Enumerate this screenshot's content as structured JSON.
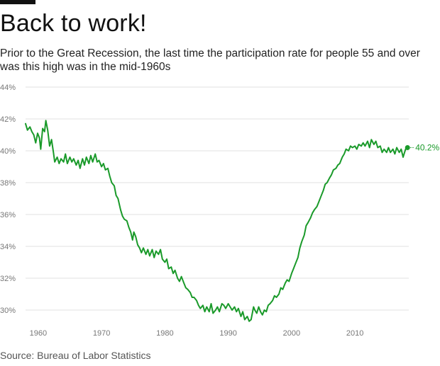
{
  "header": {
    "title": "Back to work!",
    "subtitle": "Prior to the Great Recession, the last time the participation rate for people 55 and over was this high was in the mid-1960s"
  },
  "footer": {
    "source": "Source: Bureau of Labor Statistics"
  },
  "colors": {
    "line": "#1a9a2a",
    "grid": "#e2e2e2",
    "axis_text": "#777777"
  },
  "chart_data": {
    "type": "line",
    "title": "Back to work!",
    "xlabel": "",
    "ylabel": "",
    "xlim": [
      1958,
      2018.5
    ],
    "ylim": [
      29,
      44.5
    ],
    "x_ticks": [
      1960,
      1970,
      1980,
      1990,
      2000,
      2010
    ],
    "x_tick_labels": [
      "1960",
      "1970",
      "1980",
      "1990",
      "2000",
      "2010"
    ],
    "y_ticks": [
      30,
      32,
      34,
      36,
      38,
      40,
      42,
      44
    ],
    "y_tick_labels": [
      "30%",
      "32%",
      "34%",
      "36%",
      "38%",
      "40%",
      "42%",
      "44%"
    ],
    "grid": "horizontal",
    "series": [
      {
        "name": "",
        "color": "#1a9a2a",
        "end_label": "40.2%",
        "points": [
          [
            1958.0,
            41.7
          ],
          [
            1958.3,
            41.3
          ],
          [
            1958.7,
            41.5
          ],
          [
            1959.0,
            41.2
          ],
          [
            1959.3,
            41.0
          ],
          [
            1959.6,
            40.5
          ],
          [
            1959.9,
            41.1
          ],
          [
            1960.2,
            40.8
          ],
          [
            1960.4,
            40.1
          ],
          [
            1960.7,
            41.4
          ],
          [
            1961.0,
            41.2
          ],
          [
            1961.2,
            41.9
          ],
          [
            1961.5,
            41.3
          ],
          [
            1961.8,
            40.3
          ],
          [
            1962.1,
            40.7
          ],
          [
            1962.4,
            39.9
          ],
          [
            1962.6,
            39.3
          ],
          [
            1963.0,
            39.6
          ],
          [
            1963.3,
            39.2
          ],
          [
            1963.6,
            39.5
          ],
          [
            1964.0,
            39.3
          ],
          [
            1964.3,
            39.8
          ],
          [
            1964.6,
            39.2
          ],
          [
            1965.0,
            39.6
          ],
          [
            1965.3,
            39.3
          ],
          [
            1965.6,
            39.5
          ],
          [
            1966.0,
            39.1
          ],
          [
            1966.3,
            39.4
          ],
          [
            1966.6,
            38.9
          ],
          [
            1967.0,
            39.5
          ],
          [
            1967.3,
            39.1
          ],
          [
            1967.6,
            39.6
          ],
          [
            1968.0,
            39.2
          ],
          [
            1968.3,
            39.7
          ],
          [
            1968.6,
            39.3
          ],
          [
            1969.0,
            39.8
          ],
          [
            1969.3,
            39.3
          ],
          [
            1969.6,
            39.4
          ],
          [
            1970.0,
            39.0
          ],
          [
            1970.3,
            39.2
          ],
          [
            1970.6,
            38.8
          ],
          [
            1971.0,
            38.9
          ],
          [
            1971.3,
            38.4
          ],
          [
            1971.6,
            38.0
          ],
          [
            1972.0,
            37.8
          ],
          [
            1972.3,
            37.2
          ],
          [
            1972.6,
            37.0
          ],
          [
            1973.0,
            36.3
          ],
          [
            1973.3,
            35.9
          ],
          [
            1973.6,
            35.7
          ],
          [
            1974.0,
            35.6
          ],
          [
            1974.3,
            35.2
          ],
          [
            1974.6,
            34.9
          ],
          [
            1974.9,
            34.4
          ],
          [
            1975.1,
            34.9
          ],
          [
            1975.4,
            34.6
          ],
          [
            1975.7,
            34.1
          ],
          [
            1976.0,
            33.9
          ],
          [
            1976.3,
            33.6
          ],
          [
            1976.6,
            33.9
          ],
          [
            1977.0,
            33.5
          ],
          [
            1977.3,
            33.8
          ],
          [
            1977.6,
            33.4
          ],
          [
            1978.0,
            33.8
          ],
          [
            1978.3,
            33.3
          ],
          [
            1978.6,
            33.7
          ],
          [
            1979.0,
            33.5
          ],
          [
            1979.3,
            33.8
          ],
          [
            1979.6,
            33.2
          ],
          [
            1980.0,
            33.0
          ],
          [
            1980.3,
            33.2
          ],
          [
            1980.6,
            32.6
          ],
          [
            1981.0,
            32.7
          ],
          [
            1981.3,
            32.3
          ],
          [
            1981.6,
            32.5
          ],
          [
            1982.0,
            32.0
          ],
          [
            1982.3,
            31.8
          ],
          [
            1982.6,
            32.1
          ],
          [
            1983.0,
            31.7
          ],
          [
            1983.3,
            31.4
          ],
          [
            1983.6,
            31.3
          ],
          [
            1984.0,
            31.1
          ],
          [
            1984.3,
            30.8
          ],
          [
            1984.6,
            30.8
          ],
          [
            1985.0,
            30.6
          ],
          [
            1985.3,
            30.3
          ],
          [
            1985.6,
            30.1
          ],
          [
            1986.0,
            30.3
          ],
          [
            1986.3,
            29.9
          ],
          [
            1986.6,
            30.2
          ],
          [
            1987.0,
            29.9
          ],
          [
            1987.3,
            30.4
          ],
          [
            1987.6,
            29.8
          ],
          [
            1988.0,
            30.0
          ],
          [
            1988.3,
            30.2
          ],
          [
            1988.6,
            29.9
          ],
          [
            1989.0,
            30.4
          ],
          [
            1989.3,
            30.3
          ],
          [
            1989.6,
            30.1
          ],
          [
            1990.0,
            30.4
          ],
          [
            1990.3,
            30.2
          ],
          [
            1990.6,
            30.0
          ],
          [
            1991.0,
            30.2
          ],
          [
            1991.3,
            29.9
          ],
          [
            1991.6,
            30.1
          ],
          [
            1992.0,
            29.6
          ],
          [
            1992.3,
            29.9
          ],
          [
            1992.6,
            29.4
          ],
          [
            1993.0,
            29.6
          ],
          [
            1993.3,
            29.3
          ],
          [
            1993.6,
            29.4
          ],
          [
            1994.0,
            30.2
          ],
          [
            1994.2,
            30.0
          ],
          [
            1994.5,
            29.8
          ],
          [
            1994.8,
            30.2
          ],
          [
            1995.1,
            29.9
          ],
          [
            1995.4,
            29.7
          ],
          [
            1995.7,
            30.0
          ],
          [
            1996.0,
            29.9
          ],
          [
            1996.3,
            30.3
          ],
          [
            1996.6,
            30.4
          ],
          [
            1997.0,
            30.6
          ],
          [
            1997.3,
            30.9
          ],
          [
            1997.6,
            30.8
          ],
          [
            1998.0,
            31.0
          ],
          [
            1998.3,
            31.4
          ],
          [
            1998.6,
            31.3
          ],
          [
            1999.0,
            31.7
          ],
          [
            1999.3,
            31.9
          ],
          [
            1999.6,
            31.8
          ],
          [
            2000.0,
            32.3
          ],
          [
            2000.3,
            32.6
          ],
          [
            2000.6,
            32.9
          ],
          [
            2001.0,
            33.3
          ],
          [
            2001.3,
            33.9
          ],
          [
            2001.6,
            34.3
          ],
          [
            2002.0,
            34.7
          ],
          [
            2002.3,
            35.3
          ],
          [
            2002.6,
            35.5
          ],
          [
            2003.0,
            35.8
          ],
          [
            2003.3,
            36.1
          ],
          [
            2003.6,
            36.3
          ],
          [
            2004.0,
            36.5
          ],
          [
            2004.3,
            36.8
          ],
          [
            2004.6,
            37.1
          ],
          [
            2005.0,
            37.5
          ],
          [
            2005.3,
            37.9
          ],
          [
            2005.6,
            38.0
          ],
          [
            2006.0,
            38.3
          ],
          [
            2006.3,
            38.5
          ],
          [
            2006.6,
            38.8
          ],
          [
            2007.0,
            38.9
          ],
          [
            2007.3,
            39.1
          ],
          [
            2007.6,
            39.2
          ],
          [
            2008.0,
            39.6
          ],
          [
            2008.3,
            39.8
          ],
          [
            2008.6,
            40.1
          ],
          [
            2009.0,
            40.0
          ],
          [
            2009.3,
            40.3
          ],
          [
            2009.6,
            40.2
          ],
          [
            2010.0,
            40.3
          ],
          [
            2010.3,
            40.1
          ],
          [
            2010.6,
            40.4
          ],
          [
            2011.0,
            40.3
          ],
          [
            2011.3,
            40.5
          ],
          [
            2011.6,
            40.3
          ],
          [
            2012.0,
            40.6
          ],
          [
            2012.3,
            40.2
          ],
          [
            2012.6,
            40.7
          ],
          [
            2013.0,
            40.4
          ],
          [
            2013.3,
            40.6
          ],
          [
            2013.6,
            40.2
          ],
          [
            2014.0,
            40.3
          ],
          [
            2014.3,
            39.9
          ],
          [
            2014.6,
            40.1
          ],
          [
            2015.0,
            39.9
          ],
          [
            2015.3,
            40.2
          ],
          [
            2015.6,
            39.9
          ],
          [
            2016.0,
            40.1
          ],
          [
            2016.3,
            39.8
          ],
          [
            2016.6,
            40.2
          ],
          [
            2017.0,
            39.9
          ],
          [
            2017.3,
            40.1
          ],
          [
            2017.6,
            39.6
          ],
          [
            2018.0,
            40.1
          ],
          [
            2018.3,
            40.2
          ]
        ]
      }
    ]
  }
}
